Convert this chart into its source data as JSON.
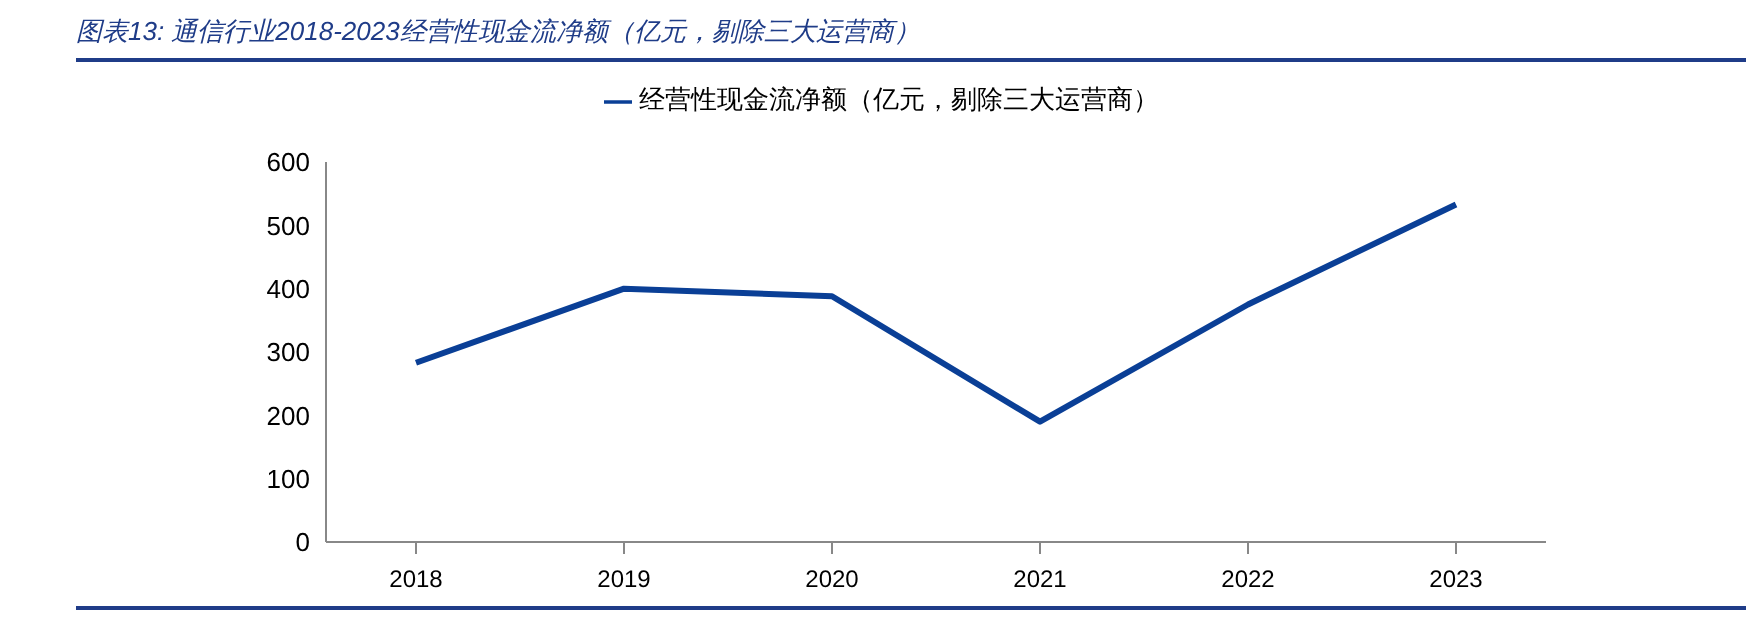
{
  "chart_data": {
    "type": "line",
    "title": "图表13: 通信行业2018-2023经营性现金流净额（亿元，剔除三大运营商）",
    "categories": [
      "2018",
      "2019",
      "2020",
      "2021",
      "2022",
      "2023"
    ],
    "series": [
      {
        "name": "经营性现金流净额（亿元，剔除三大运营商）",
        "color": "#0a3f96",
        "values": [
          283,
          400,
          388,
          190,
          375,
          533
        ]
      }
    ],
    "ylim": [
      0,
      600
    ],
    "yticks": [
      0,
      100,
      200,
      300,
      400,
      500,
      600
    ],
    "grid": false,
    "legend": "top",
    "marker": "none",
    "line_style": "solid"
  }
}
